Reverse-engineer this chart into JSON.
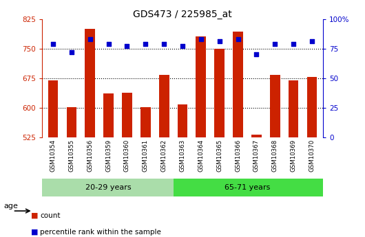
{
  "title": "GDS473 / 225985_at",
  "samples": [
    "GSM10354",
    "GSM10355",
    "GSM10356",
    "GSM10359",
    "GSM10360",
    "GSM10361",
    "GSM10362",
    "GSM10363",
    "GSM10364",
    "GSM10365",
    "GSM10366",
    "GSM10367",
    "GSM10368",
    "GSM10369",
    "GSM10370"
  ],
  "counts": [
    670,
    601,
    800,
    637,
    638,
    601,
    683,
    608,
    780,
    750,
    793,
    533,
    683,
    670,
    678
  ],
  "percentile": [
    79,
    72,
    83,
    79,
    77,
    79,
    79,
    77,
    83,
    81,
    83,
    70,
    79,
    79,
    81
  ],
  "group1_label": "20-29 years",
  "group2_label": "65-71 years",
  "group1_count": 7,
  "group2_count": 8,
  "ymin": 525,
  "ymax": 825,
  "y_ticks": [
    525,
    600,
    675,
    750,
    825
  ],
  "y_right_ticks": [
    0,
    25,
    50,
    75,
    100
  ],
  "bar_color": "#cc2200",
  "dot_color": "#0000cc",
  "group1_color": "#aaddaa",
  "group2_color": "#44dd44",
  "bg_gray": "#c8c8c8",
  "legend_count_label": "count",
  "legend_pct_label": "percentile rank within the sample",
  "xlabel_age": "age"
}
